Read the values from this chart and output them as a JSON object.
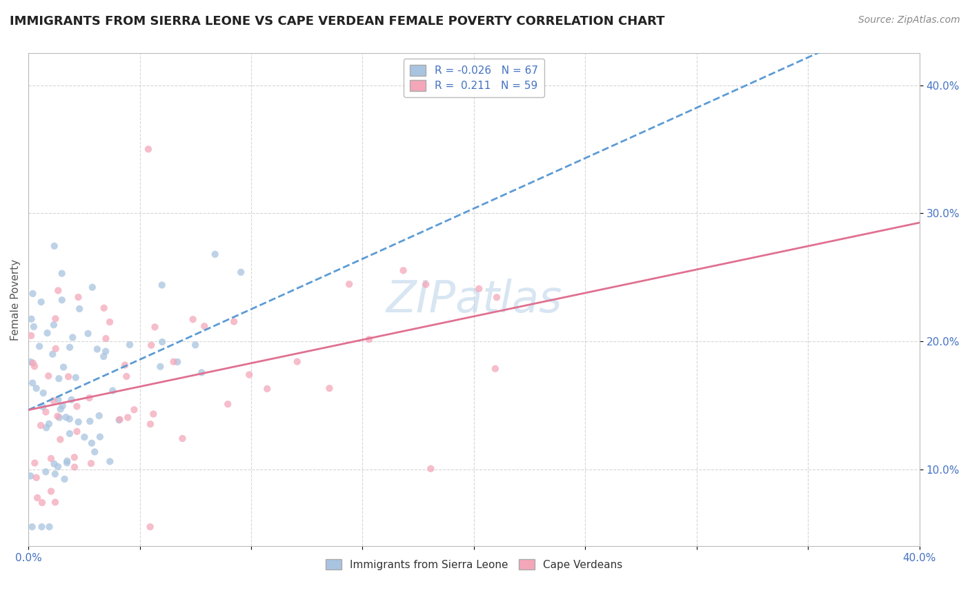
{
  "title": "IMMIGRANTS FROM SIERRA LEONE VS CAPE VERDEAN FEMALE POVERTY CORRELATION CHART",
  "source": "Source: ZipAtlas.com",
  "ylabel": "Female Poverty",
  "xmin": 0.0,
  "xmax": 0.4,
  "ymin": 0.04,
  "ymax": 0.425,
  "series1_name": "Immigrants from Sierra Leone",
  "series1_color": "#a8c4e0",
  "series1_line_color": "#5b9bd5",
  "series1_R": -0.026,
  "series1_N": 67,
  "series2_name": "Cape Verdeans",
  "series2_color": "#f4a7b9",
  "series2_line_color": "#e07090",
  "series2_R": 0.211,
  "series2_N": 59,
  "watermark": "ZIPatlas",
  "background_color": "#ffffff",
  "grid_color": "#cccccc",
  "title_fontsize": 13,
  "axis_label_fontsize": 11,
  "tick_fontsize": 11,
  "legend_fontsize": 11,
  "source_fontsize": 10,
  "scatter_alpha": 0.75,
  "scatter_size": 55,
  "tick_color": "#4472c4"
}
